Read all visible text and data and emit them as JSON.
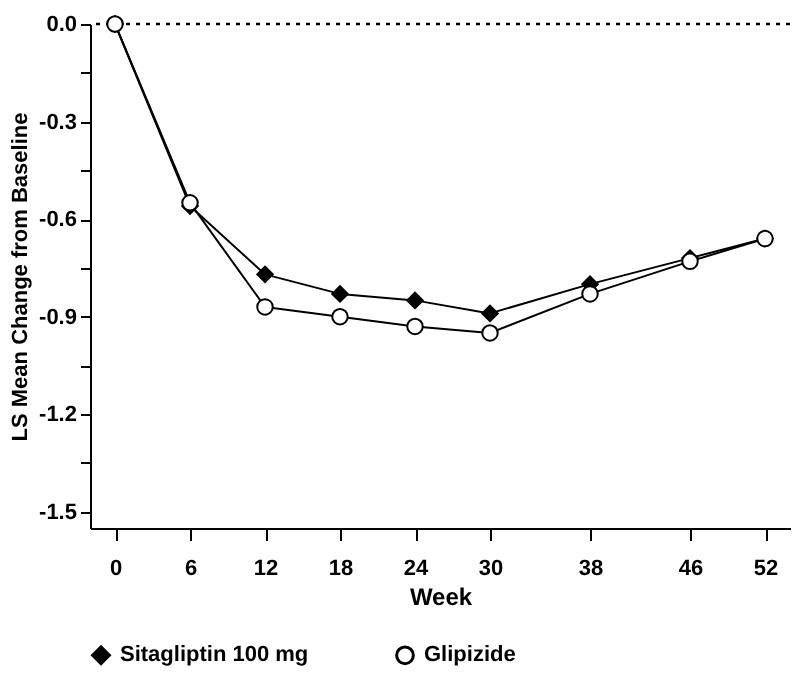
{
  "chart_data": {
    "type": "line",
    "xlabel": "Week",
    "ylabel": "LS Mean Change from Baseline",
    "x": [
      0,
      6,
      12,
      18,
      24,
      30,
      38,
      46,
      52
    ],
    "series": [
      {
        "name": "Sitagliptin 100 mg",
        "color": "#000000",
        "marker": "diamond",
        "values": [
          0,
          -0.56,
          -0.77,
          -0.83,
          -0.85,
          -0.89,
          -0.8,
          -0.72,
          -0.66
        ]
      },
      {
        "name": "Glipizide",
        "color": "#000000",
        "marker": "circle",
        "values": [
          0,
          -0.55,
          -0.87,
          -0.9,
          -0.93,
          -0.95,
          -0.83,
          -0.73,
          -0.66
        ]
      }
    ],
    "xlim": [
      -2,
      54
    ],
    "xticks": [
      0,
      6,
      12,
      18,
      24,
      30,
      38,
      46,
      52
    ],
    "ylim": [
      -1.55,
      0
    ],
    "yticks": [
      {
        "value": -1.5,
        "label": "-1.5"
      },
      {
        "value": -1.35,
        "label": null
      },
      {
        "value": -1.2,
        "label": "-1.2"
      },
      {
        "value": -1.05,
        "label": null
      },
      {
        "value": -0.9,
        "label": "-0.9"
      },
      {
        "value": -0.75,
        "label": null
      },
      {
        "value": -0.6,
        "label": "-0.6"
      },
      {
        "value": -0.45,
        "label": null
      },
      {
        "value": -0.3,
        "label": "-0.3"
      },
      {
        "value": -0.15,
        "label": null
      },
      {
        "value": 0,
        "label": "0.0"
      }
    ],
    "ref_lines": [
      {
        "axis": "y",
        "value": 0,
        "line_style": "dotted"
      }
    ],
    "grid": false,
    "legend": "bottom",
    "line_style": "solid"
  }
}
